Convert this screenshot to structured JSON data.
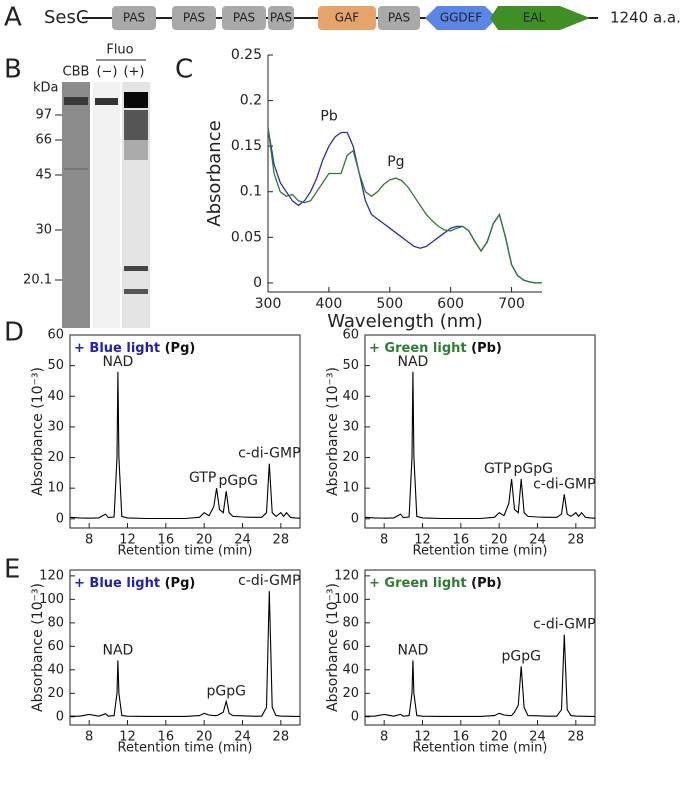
{
  "panel_labels": [
    "A",
    "B",
    "C",
    "D",
    "E"
  ],
  "domain_diagram": {
    "protein": "SesC",
    "domains": [
      "PAS",
      "PAS",
      "PAS",
      "PAS",
      "GAF",
      "PAS",
      "GGDEF",
      "EAL"
    ],
    "length": "1240 a.a."
  },
  "gel": {
    "unit": "kDa",
    "markers": [
      97,
      66,
      45,
      30,
      20.1
    ],
    "fluo_label": "Fluo",
    "lanes": [
      "CBB",
      "(−)",
      "(+)"
    ]
  },
  "chart_data": [
    {
      "type": "line",
      "x_label": "Wavelength (nm)",
      "y_label": "Absorbance",
      "x": [
        300,
        310,
        320,
        330,
        340,
        350,
        360,
        370,
        380,
        390,
        400,
        410,
        420,
        430,
        440,
        450,
        460,
        470,
        480,
        490,
        500,
        510,
        520,
        530,
        540,
        550,
        560,
        570,
        580,
        590,
        600,
        610,
        620,
        630,
        640,
        650,
        660,
        670,
        680,
        690,
        700,
        710,
        720,
        730,
        740,
        750
      ],
      "xlim": [
        300,
        750
      ],
      "xticks": [
        300,
        400,
        500,
        600,
        700
      ],
      "ylim": [
        -0.01,
        0.25
      ],
      "yticks": [
        0,
        0.05,
        0.1,
        0.15,
        0.2,
        0.25
      ],
      "series": [
        {
          "name": "Pb",
          "color": "#2a2fb8",
          "values": [
            0.17,
            0.13,
            0.11,
            0.1,
            0.09,
            0.085,
            0.09,
            0.1,
            0.115,
            0.135,
            0.15,
            0.16,
            0.165,
            0.165,
            0.15,
            0.12,
            0.09,
            0.075,
            0.07,
            0.065,
            0.06,
            0.055,
            0.05,
            0.045,
            0.04,
            0.038,
            0.04,
            0.045,
            0.05,
            0.055,
            0.06,
            0.062,
            0.062,
            0.057,
            0.045,
            0.035,
            0.045,
            0.065,
            0.075,
            0.05,
            0.02,
            0.008,
            0.003,
            0.001,
            0,
            0
          ]
        },
        {
          "name": "Pg",
          "color": "#2e7d32",
          "values": [
            0.17,
            0.12,
            0.1,
            0.095,
            0.097,
            0.09,
            0.088,
            0.09,
            0.1,
            0.11,
            0.12,
            0.12,
            0.12,
            0.14,
            0.145,
            0.12,
            0.1,
            0.095,
            0.1,
            0.108,
            0.113,
            0.115,
            0.112,
            0.105,
            0.095,
            0.085,
            0.075,
            0.068,
            0.062,
            0.058,
            0.057,
            0.06,
            0.062,
            0.057,
            0.045,
            0.035,
            0.045,
            0.065,
            0.075,
            0.05,
            0.02,
            0.008,
            0.003,
            0.001,
            0,
            0
          ]
        }
      ]
    },
    {
      "type": "chromatogram",
      "title": "+ Blue light",
      "title_suffix": "(Pg)",
      "title_color": "#1f1fbf",
      "x_label": "Retention time (min)",
      "y_label": "Absorbance (10⁻³)",
      "x": [
        6,
        7,
        8,
        9,
        9.7,
        10,
        10.6,
        10.9,
        11,
        11.1,
        11.4,
        12,
        14,
        16,
        18,
        19.5,
        20,
        20.5,
        21,
        21.3,
        21.6,
        22,
        22.3,
        22.6,
        23,
        24,
        25,
        26,
        26.5,
        26.8,
        27.1,
        27.5,
        28,
        28.3,
        28.6,
        29,
        29.5,
        30
      ],
      "values": [
        0.5,
        0.3,
        0.2,
        0.3,
        1.5,
        0.4,
        0.6,
        20,
        48,
        20,
        0.8,
        0.3,
        0.1,
        0.1,
        0.1,
        0.5,
        2,
        1,
        4,
        10,
        3,
        2,
        9,
        2,
        0.8,
        0.6,
        0.5,
        0.5,
        2,
        18,
        2,
        0.8,
        2,
        0.8,
        2,
        0.5,
        0.3,
        0.2
      ],
      "color": "#000000",
      "xlim": [
        6,
        30
      ],
      "xticks": [
        8,
        12,
        16,
        20,
        24,
        28
      ],
      "ylim": [
        -3,
        60
      ],
      "yticks": [
        0,
        10,
        20,
        30,
        40,
        50,
        60
      ],
      "annotations": [
        {
          "text": "NAD",
          "x": 11
        },
        {
          "text": "GTP",
          "x": 21.3
        },
        {
          "text": "pGpG",
          "x": 22.3
        },
        {
          "text": "c-di-GMP",
          "x": 26.8
        }
      ]
    },
    {
      "type": "chromatogram",
      "title": "+ Green light",
      "title_suffix": "(Pb)",
      "title_color": "#2e7d32",
      "x_label": "Retention time (min)",
      "y_label": "Absorbance (10⁻³)",
      "x": [
        6,
        7,
        8,
        9,
        9.7,
        10,
        10.6,
        10.9,
        11,
        11.1,
        11.4,
        12,
        14,
        16,
        18,
        19.5,
        20,
        20.5,
        21,
        21.3,
        21.6,
        22,
        22.3,
        22.6,
        23,
        24,
        25,
        26,
        26.5,
        26.8,
        27.1,
        27.5,
        28,
        28.3,
        28.6,
        29,
        29.5,
        30
      ],
      "values": [
        0.5,
        0.3,
        0.2,
        0.3,
        1.5,
        0.4,
        0.6,
        20,
        48,
        20,
        0.8,
        0.3,
        0.1,
        0.1,
        0.1,
        0.5,
        2,
        1,
        5,
        13,
        3,
        2,
        13,
        2,
        0.8,
        0.6,
        0.5,
        0.5,
        1.5,
        8,
        1.5,
        0.8,
        2,
        0.8,
        2,
        0.5,
        0.3,
        0.2
      ],
      "color": "#000000",
      "xlim": [
        6,
        30
      ],
      "xticks": [
        8,
        12,
        16,
        20,
        24,
        28
      ],
      "ylim": [
        -3,
        60
      ],
      "yticks": [
        0,
        10,
        20,
        30,
        40,
        50,
        60
      ],
      "annotations": [
        {
          "text": "NAD",
          "x": 11
        },
        {
          "text": "GTP",
          "x": 21.3
        },
        {
          "text": "pGpG",
          "x": 22.3
        },
        {
          "text": "c-di-GMP",
          "x": 26.8
        }
      ]
    },
    {
      "type": "chromatogram",
      "title": "+ Blue light",
      "title_suffix": "(Pg)",
      "title_color": "#1f1fbf",
      "x_label": "Retention time (min)",
      "y_label": "Absorbance (10⁻³)",
      "x": [
        6,
        7,
        8,
        9,
        9.7,
        10,
        10.6,
        10.9,
        11,
        11.1,
        11.4,
        12,
        14,
        16,
        18,
        19.5,
        20,
        20.5,
        21,
        21.3,
        21.6,
        22,
        22.3,
        22.6,
        23,
        24,
        25,
        26,
        26.5,
        26.8,
        27.1,
        27.5,
        28,
        28.3,
        28.6,
        29,
        29.5,
        30
      ],
      "values": [
        0.5,
        0.5,
        2,
        0.5,
        2.5,
        0.5,
        1,
        20,
        48,
        20,
        1,
        0.5,
        0.3,
        0.3,
        0.3,
        1,
        3,
        1.5,
        1,
        1,
        2,
        4,
        13,
        3,
        1,
        0.8,
        0.5,
        0.5,
        8,
        107,
        8,
        1,
        0.6,
        0.5,
        0.5,
        0.4,
        0.3,
        0.3
      ],
      "color": "#000000",
      "xlim": [
        6,
        30
      ],
      "xticks": [
        8,
        12,
        16,
        20,
        24,
        28
      ],
      "ylim": [
        -7,
        125
      ],
      "yticks": [
        0,
        20,
        40,
        60,
        80,
        100,
        120
      ],
      "annotations": [
        {
          "text": "NAD",
          "x": 11
        },
        {
          "text": "pGpG",
          "x": 22.3
        },
        {
          "text": "c-di-GMP",
          "x": 26.8
        }
      ]
    },
    {
      "type": "chromatogram",
      "title": "+ Green light",
      "title_suffix": "(Pb)",
      "title_color": "#2e7d32",
      "x_label": "Retention time (min)",
      "y_label": "Absorbance (10⁻³)",
      "x": [
        6,
        7,
        8,
        9,
        9.7,
        10,
        10.6,
        10.9,
        11,
        11.1,
        11.4,
        12,
        14,
        16,
        18,
        19.5,
        20,
        20.5,
        21,
        21.3,
        21.6,
        22,
        22.3,
        22.6,
        23,
        24,
        25,
        26,
        26.5,
        26.8,
        27.1,
        27.5,
        28,
        28.3,
        28.6,
        29,
        29.5,
        30
      ],
      "values": [
        0.5,
        0.5,
        2,
        0.5,
        2,
        0.5,
        1,
        20,
        48,
        20,
        1,
        0.5,
        0.3,
        0.3,
        0.3,
        1,
        3,
        1.5,
        1,
        1,
        4,
        10,
        43,
        8,
        1,
        0.8,
        0.5,
        0.5,
        6,
        70,
        6,
        1,
        0.6,
        0.5,
        0.5,
        0.4,
        0.3,
        0.3
      ],
      "color": "#000000",
      "xlim": [
        6,
        30
      ],
      "xticks": [
        8,
        12,
        16,
        20,
        24,
        28
      ],
      "ylim": [
        -7,
        125
      ],
      "yticks": [
        0,
        20,
        40,
        60,
        80,
        100,
        120
      ],
      "annotations": [
        {
          "text": "NAD",
          "x": 11
        },
        {
          "text": "pGpG",
          "x": 22.3
        },
        {
          "text": "c-di-GMP",
          "x": 26.8
        }
      ]
    }
  ]
}
